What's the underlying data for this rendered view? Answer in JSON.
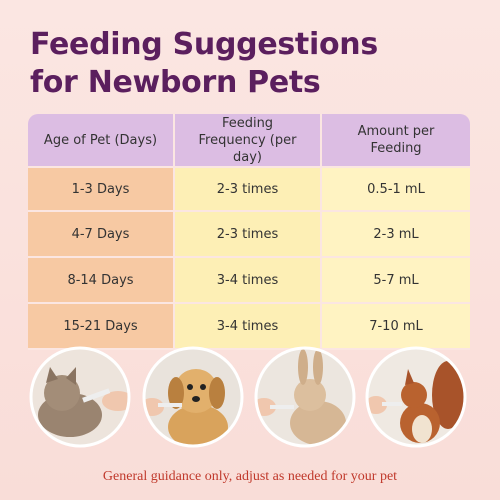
{
  "header": {
    "title": [
      "Feeding Suggestions",
      "for Newborn Pets"
    ]
  },
  "table": {
    "headers": [
      "Age of Pet (Days)",
      "Feeding Frequency (per day)",
      "Amount per Feeding"
    ],
    "rows": [
      [
        "1-3 Days",
        "2-3 times",
        "0.5-1 mL"
      ],
      [
        "4-7 Days",
        "2-3 times",
        "2-3 mL"
      ],
      [
        "8-14 Days",
        "3-4 times",
        "5-7 mL"
      ],
      [
        "15-21 Days",
        "3-4 times",
        "7-10 mL"
      ]
    ]
  },
  "footer": {
    "note": "General guidance only, adjust as needed for your pet"
  }
}
